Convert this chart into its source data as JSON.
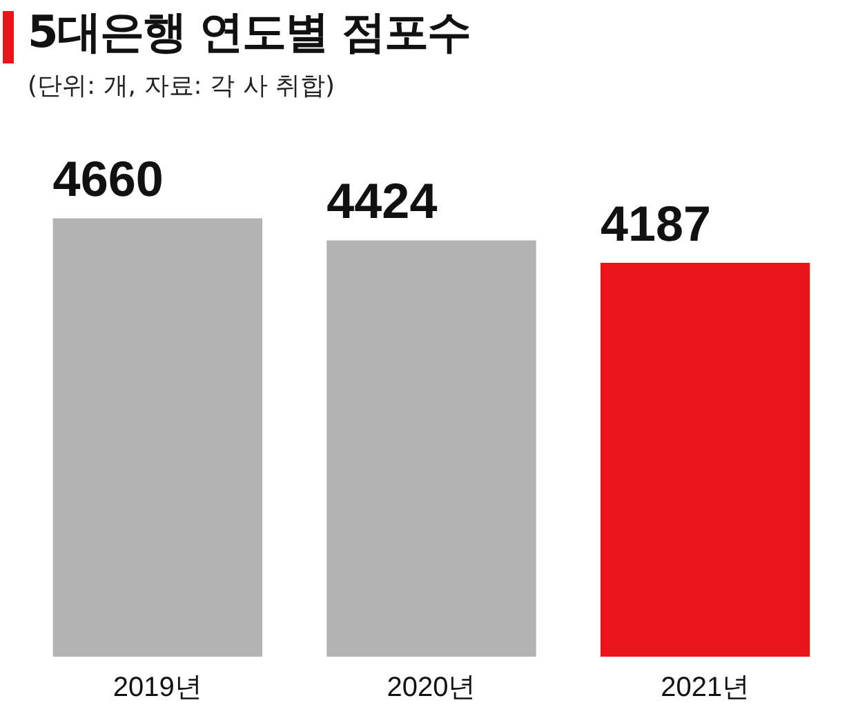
{
  "chart_data": {
    "type": "bar",
    "title": "5대은행 연도별 점포수",
    "subtitle": "(단위: 개, 자료: 각 사 취합)",
    "categories": [
      "2019년",
      "2020년",
      "2021년"
    ],
    "values": [
      4660,
      4424,
      4187
    ],
    "colors": [
      "#b3b3b3",
      "#b3b3b3",
      "#e8141c"
    ],
    "tick_labels": "x",
    "data_labels": true,
    "grid": false,
    "legend": false
  }
}
